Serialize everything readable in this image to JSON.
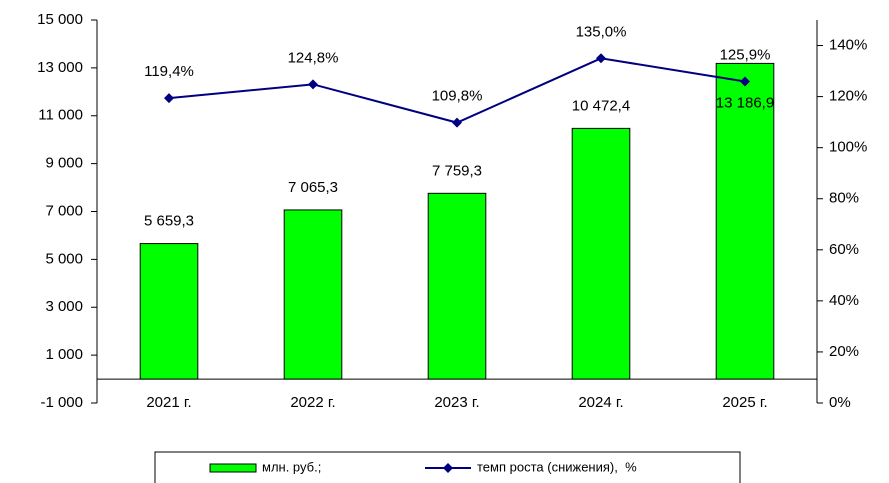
{
  "chart_data": {
    "type": "bar",
    "categories": [
      "2021 г.",
      "2022 г.",
      "2023 г.",
      "2024 г.",
      "2025 г."
    ],
    "series": [
      {
        "name": "млн. руб.;",
        "type": "bar",
        "color": "#00ff00",
        "values": [
          5659.3,
          7065.3,
          7759.3,
          10472.4,
          13186.9
        ],
        "value_labels": [
          "5 659,3",
          "7 065,3",
          "7 759,3",
          "10 472,4",
          "13 186,9"
        ]
      },
      {
        "name": "темп роста (снижения),  %",
        "type": "line",
        "axis": "y2",
        "color": "#000080",
        "values": [
          119.4,
          124.8,
          109.8,
          135.0,
          125.9
        ],
        "value_labels": [
          "119,4%",
          "124,8%",
          "109,8%",
          "135,0%",
          "125,9%"
        ]
      }
    ],
    "ylim": [
      -1000,
      15000
    ],
    "yticks": [
      {
        "value": -1000,
        "label": "-1 000"
      },
      {
        "value": 1000,
        "label": "1 000"
      },
      {
        "value": 3000,
        "label": "3 000"
      },
      {
        "value": 5000,
        "label": "5 000"
      },
      {
        "value": 7000,
        "label": "7 000"
      },
      {
        "value": 9000,
        "label": "9 000"
      },
      {
        "value": 11000,
        "label": "11 000"
      },
      {
        "value": 13000,
        "label": "13 000"
      },
      {
        "value": 15000,
        "label": "15 000"
      }
    ],
    "y2lim": [
      0,
      150
    ],
    "y2ticks": [
      {
        "value": 0,
        "label": "0%"
      },
      {
        "value": 20,
        "label": "20%"
      },
      {
        "value": 40,
        "label": "40%"
      },
      {
        "value": 60,
        "label": "60%"
      },
      {
        "value": 80,
        "label": "80%"
      },
      {
        "value": 100,
        "label": "100%"
      },
      {
        "value": 120,
        "label": "120%"
      },
      {
        "value": 140,
        "label": "140%"
      }
    ],
    "legend": "bottom"
  }
}
